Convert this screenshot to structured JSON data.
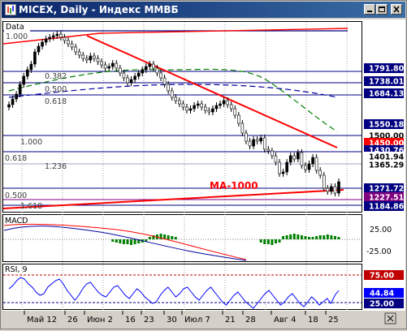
{
  "window": {
    "title": "MICEX, Daily - Индекс ММВБ",
    "buttons": [
      "minimize",
      "maximize",
      "close"
    ]
  },
  "colors": {
    "title_bar": "#0a246a",
    "price_bars": "#000000",
    "trendline": "#ff0000",
    "ma_green": "#008000",
    "ma_blue": "#0000a0",
    "fibo_line": "#000080",
    "macd_bars": "#008000",
    "macd_signal": "#ff0000",
    "rsi_line": "#0000ff"
  },
  "main_panel": {
    "name": "Data",
    "fibo_labels": [
      "1.000",
      "0.382",
      "0.500",
      "0.618",
      "1.000",
      "0.618",
      "1.236",
      "0.500",
      "1.618"
    ],
    "annotation": "MA-1000",
    "price_labels": [
      {
        "text": "1791.80",
        "bg": "#000080",
        "fg": "#ffffff"
      },
      {
        "text": "1738.01",
        "bg": "#000080",
        "fg": "#ffffff"
      },
      {
        "text": "1684.13",
        "bg": "#000080",
        "fg": "#ffffff"
      },
      {
        "text": "1550.18",
        "bg": "#000080",
        "fg": "#ffffff"
      },
      {
        "text": "1500.00",
        "bg": "#ffffff",
        "fg": "#000000"
      },
      {
        "text": "1450.00",
        "bg": "#ff0000",
        "fg": "#ffffff"
      },
      {
        "text": "1430.76",
        "bg": "#000080",
        "fg": "#ffffff"
      },
      {
        "text": "1401.94",
        "bg": "#ffffff",
        "fg": "#000000"
      },
      {
        "text": "1365.29",
        "bg": "#ffffff",
        "fg": "#000000"
      },
      {
        "text": "1271.72",
        "bg": "#000080",
        "fg": "#ffffff"
      },
      {
        "text": "1227.51",
        "bg": "#800080",
        "fg": "#ffffff"
      },
      {
        "text": "1184.86",
        "bg": "#000080",
        "fg": "#ffffff"
      }
    ]
  },
  "macd_panel": {
    "name": "MACD",
    "scale": [
      "25.00",
      "-25.00"
    ]
  },
  "rsi_panel": {
    "name": "RSI, 9",
    "levels": [
      {
        "text": "75.00",
        "bg": "#c00000",
        "fg": "#ffffff"
      },
      {
        "text": "44.84",
        "bg": "#0000ff",
        "fg": "#ffffff"
      },
      {
        "text": "25.00",
        "bg": "#000080",
        "fg": "#ffffff"
      }
    ]
  },
  "x_axis": [
    "Май 12",
    "26",
    "Июн 2",
    "16",
    "23",
    "30",
    "Июл 7",
    "21",
    "28",
    "Авг 4",
    "18",
    "25"
  ]
}
